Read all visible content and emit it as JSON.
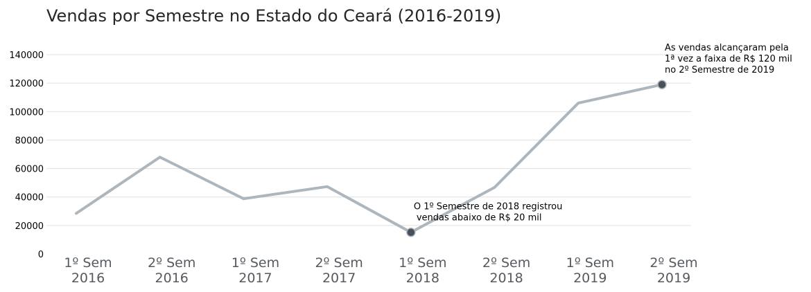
{
  "chart_data": {
    "type": "line",
    "title": "Vendas por Semestre no Estado do Ceará (2016-2019)",
    "xlabel": "",
    "ylabel": "",
    "categories": [
      [
        "1º Sem",
        "2016"
      ],
      [
        "2º Sem",
        "2016"
      ],
      [
        "1º Sem",
        "2017"
      ],
      [
        "2º Sem",
        "2017"
      ],
      [
        "1º Sem",
        "2018"
      ],
      [
        "2º Sem",
        "2018"
      ],
      [
        "1º Sem",
        "2019"
      ],
      [
        "2º Sem",
        "2019"
      ]
    ],
    "series": [
      {
        "values": [
          28500,
          68000,
          38800,
          47300,
          15200,
          46800,
          106000,
          119000
        ]
      }
    ],
    "ylim": [
      0,
      140000
    ],
    "yticks": [
      "0",
      "20000",
      "40000",
      "60000",
      "80000",
      "100000",
      "120000",
      "140000"
    ],
    "ytick_values": [
      0,
      20000,
      40000,
      60000,
      80000,
      100000,
      120000,
      140000
    ],
    "grid": true,
    "colors": {
      "line": "#adb5bd",
      "marker": "#495057",
      "gridline": "#e0e0e0"
    },
    "highlight_indices": [
      4,
      7
    ],
    "annotations": [
      {
        "index": 4,
        "lines": [
          "O 1º Semestre de 2018 registrou",
          "vendas abaixo de R$ 20 mil"
        ]
      },
      {
        "index": 7,
        "lines": [
          "As vendas alcançaram pela",
          "1ª vez a faixa de R$ 120 mil",
          "no 2º Semestre de 2019"
        ]
      }
    ]
  }
}
